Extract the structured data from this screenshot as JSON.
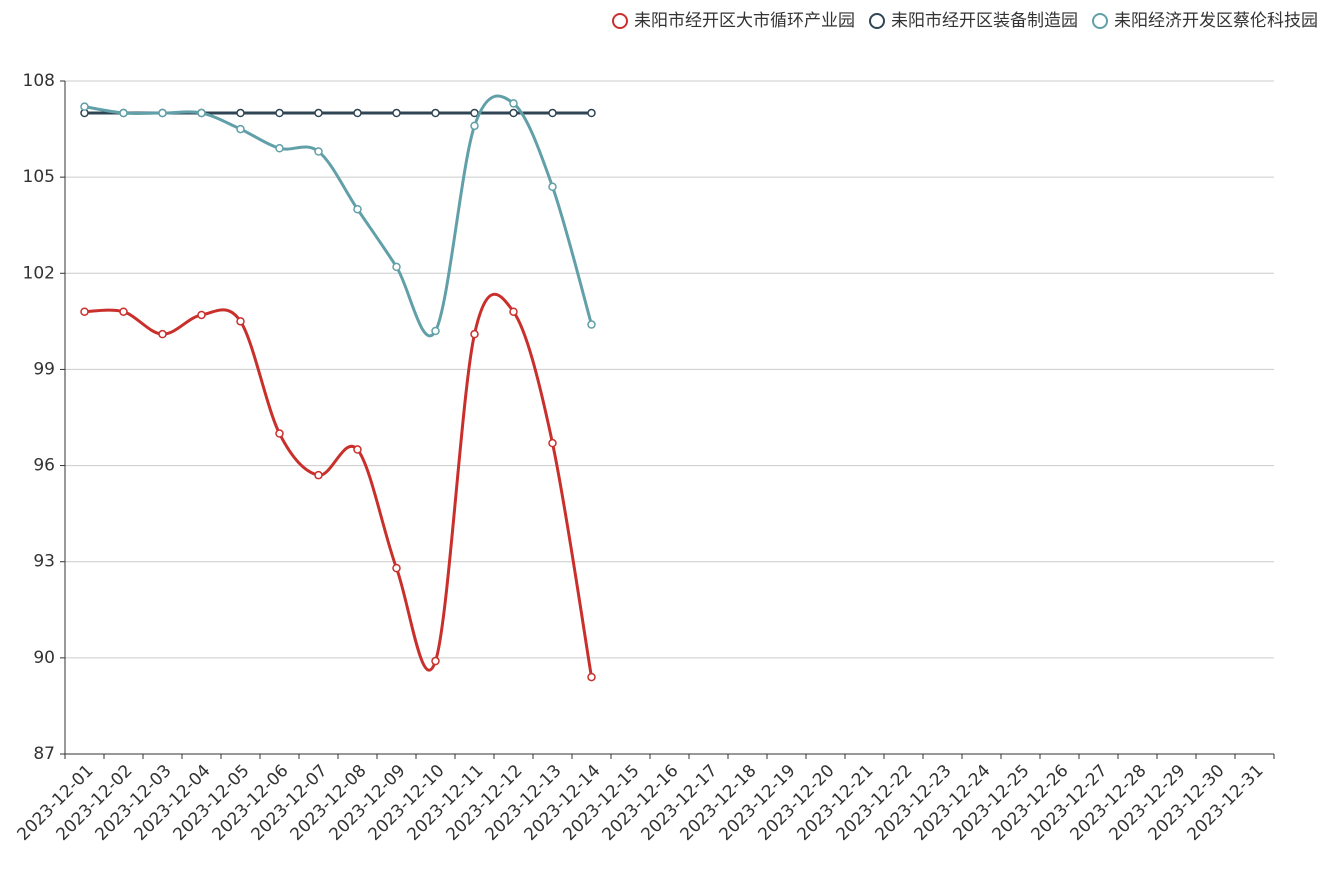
{
  "chart_data": {
    "type": "line",
    "categories": [
      "2023-12-01",
      "2023-12-02",
      "2023-12-03",
      "2023-12-04",
      "2023-12-05",
      "2023-12-06",
      "2023-12-07",
      "2023-12-08",
      "2023-12-09",
      "2023-12-10",
      "2023-12-11",
      "2023-12-12",
      "2023-12-13",
      "2023-12-14",
      "2023-12-15",
      "2023-12-16",
      "2023-12-17",
      "2023-12-18",
      "2023-12-19",
      "2023-12-20",
      "2023-12-21",
      "2023-12-22",
      "2023-12-23",
      "2023-12-24",
      "2023-12-25",
      "2023-12-26",
      "2023-12-27",
      "2023-12-28",
      "2023-12-29",
      "2023-12-30",
      "2023-12-31"
    ],
    "series": [
      {
        "name": "耒阳市经开区大市循环产业园",
        "color": "#c9302c",
        "values": [
          100.8,
          100.8,
          100.1,
          100.7,
          100.5,
          97.0,
          95.7,
          96.5,
          92.8,
          89.9,
          100.1,
          100.8,
          96.7,
          89.4,
          null,
          null,
          null,
          null,
          null,
          null,
          null,
          null,
          null,
          null,
          null,
          null,
          null,
          null,
          null,
          null,
          null
        ]
      },
      {
        "name": "耒阳市经开区装备制造园",
        "color": "#2f4554",
        "values": [
          107.0,
          107.0,
          107.0,
          107.0,
          107.0,
          107.0,
          107.0,
          107.0,
          107.0,
          107.0,
          107.0,
          107.0,
          107.0,
          107.0,
          null,
          null,
          null,
          null,
          null,
          null,
          null,
          null,
          null,
          null,
          null,
          null,
          null,
          null,
          null,
          null,
          null
        ]
      },
      {
        "name": "耒阳经济开发区蔡伦科技园",
        "color": "#61a0a8",
        "values": [
          107.2,
          107.0,
          107.0,
          107.0,
          106.5,
          105.9,
          105.8,
          104.0,
          102.2,
          100.2,
          106.6,
          107.3,
          104.7,
          100.4,
          null,
          null,
          null,
          null,
          null,
          null,
          null,
          null,
          null,
          null,
          null,
          null,
          null,
          null,
          null,
          null,
          null
        ]
      }
    ],
    "ylim": [
      87,
      108
    ],
    "yticks": [
      87,
      90,
      93,
      96,
      99,
      102,
      105,
      108
    ],
    "grid": true,
    "smooth": true,
    "legend": "top-right"
  }
}
